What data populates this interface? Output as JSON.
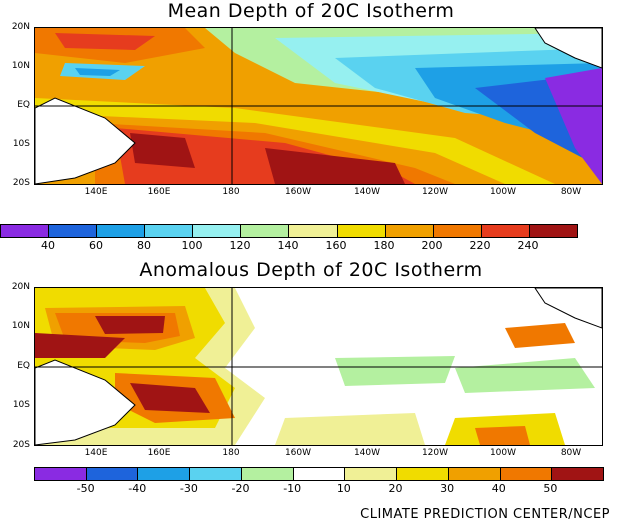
{
  "maps": [
    {
      "title": "Mean Depth of 20C Isotherm",
      "lat_labels": [
        "20N",
        "10N",
        "EQ",
        "10S",
        "20S"
      ],
      "lon_labels": [
        "140E",
        "160E",
        "180",
        "160W",
        "140W",
        "120W",
        "100W",
        "80W"
      ],
      "colorbar": {
        "labels": [
          "40",
          "60",
          "80",
          "100",
          "120",
          "140",
          "160",
          "180",
          "200",
          "220",
          "240"
        ],
        "colors": [
          "#8a2be2",
          "#1e64dc",
          "#1ea0e6",
          "#5ad2f0",
          "#96f0f0",
          "#b4f0a0",
          "#f0f096",
          "#f0dc00",
          "#f0a000",
          "#f07800",
          "#e63c1e",
          "#a01414"
        ]
      }
    },
    {
      "title": "Anomalous Depth of 20C Isotherm",
      "lat_labels": [
        "20N",
        "10N",
        "EQ",
        "10S",
        "20S"
      ],
      "lon_labels": [
        "140E",
        "160E",
        "180",
        "160W",
        "140W",
        "120W",
        "100W",
        "80W"
      ],
      "colorbar": {
        "labels": [
          "-50",
          "-40",
          "-30",
          "-20",
          "-10",
          "10",
          "20",
          "30",
          "40",
          "50"
        ],
        "colors": [
          "#8a2be2",
          "#1e64dc",
          "#1ea0e6",
          "#5ad2f0",
          "#b4f0a0",
          "#ffffff",
          "#f0f096",
          "#f0dc00",
          "#f0a000",
          "#f07800",
          "#a01414"
        ]
      }
    }
  ],
  "credit": "CLIMATE PREDICTION CENTER/NCEP"
}
